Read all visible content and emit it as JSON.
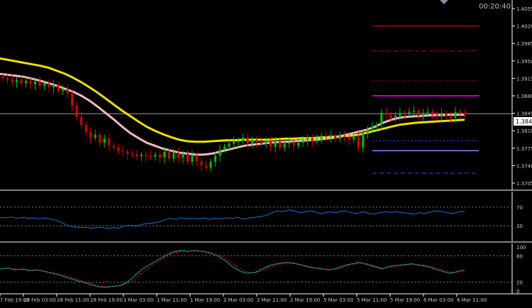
{
  "timer": "00:20:40",
  "colors": {
    "background": "#000000",
    "axis_text": "#c8c8c8",
    "candle_up": "#00c000",
    "candle_down": "#e00000",
    "ma_fast": "#f4b6c2",
    "ma_slow": "#f0e000",
    "rsi_line": "#1f6fd6",
    "stoch_main": "#20a0a0",
    "stoch_signal": "#e00000",
    "grid_level": "#808080"
  },
  "price_axis": {
    "labels": [
      "1.4055",
      "1.4020",
      "1.3985",
      "1.3950",
      "1.3915",
      "1.3880",
      "1.3845",
      "1.3810",
      "1.3775",
      "1.3740",
      "1.3705"
    ],
    "current_price": "1.3844",
    "range": [
      1.3705,
      1.4055
    ]
  },
  "rsi_axis": {
    "labels": [
      "70",
      "30"
    ]
  },
  "stoch_axis": {
    "labels": [
      "100",
      "80",
      "20",
      "0"
    ]
  },
  "time_axis": {
    "labels": [
      "7 Feb 19:00",
      "28 Feb 03:00",
      "28 Feb 11:00",
      "28 Feb 19:00",
      "1 Mar 03:00",
      "1 Mar 11:00",
      "1 Mar 19:00",
      "2 Mar 03:00",
      "2 Mar 11:00",
      "2 Mar 19:00",
      "5 Mar 03:00",
      "5 Mar 11:00",
      "5 Mar 19:00",
      "6 Mar 03:00",
      "6 Mar 11:00"
    ]
  },
  "chart_data": {
    "type": "candlestick",
    "ylim": [
      1.3705,
      1.4055
    ],
    "closes": [
      1.3915,
      1.3912,
      1.3908,
      1.3912,
      1.3905,
      1.391,
      1.3903,
      1.3909,
      1.39,
      1.3905,
      1.3897,
      1.3902,
      1.389,
      1.3893,
      1.3885,
      1.386,
      1.3838,
      1.3822,
      1.3808,
      1.3796,
      1.3802,
      1.3786,
      1.3794,
      1.378,
      1.3776,
      1.377,
      1.3768,
      1.3764,
      1.3762,
      1.3759,
      1.3762,
      1.376,
      1.3758,
      1.3762,
      1.3756,
      1.3768,
      1.3754,
      1.3766,
      1.3756,
      1.3764,
      1.3748,
      1.376,
      1.3749,
      1.374,
      1.3736,
      1.3748,
      1.376,
      1.3772,
      1.3778,
      1.3784,
      1.3788,
      1.379,
      1.3796,
      1.3785,
      1.3792,
      1.3787,
      1.3784,
      1.379,
      1.3778,
      1.3788,
      1.3776,
      1.3784,
      1.3786,
      1.378,
      1.3786,
      1.379,
      1.3796,
      1.3788,
      1.3792,
      1.38,
      1.3798,
      1.38,
      1.3794,
      1.38,
      1.3798,
      1.3792,
      1.3798,
      1.3776,
      1.3806,
      1.3812,
      1.3818,
      1.3822,
      1.3846,
      1.3842,
      1.3836,
      1.384,
      1.3846,
      1.3845,
      1.3848,
      1.385,
      1.384,
      1.3846,
      1.3848,
      1.3842,
      1.384,
      1.3845,
      1.384,
      1.3836,
      1.3848,
      1.3846,
      1.3842
    ],
    "ma_fast_values": [
      1.3924,
      1.3922,
      1.392,
      1.3918,
      1.3914,
      1.391,
      1.3905,
      1.39,
      1.3894,
      1.3888,
      1.388,
      1.387,
      1.3858,
      1.3845,
      1.3832,
      1.3818,
      1.3805,
      1.3795,
      1.3786,
      1.378,
      1.3774,
      1.377,
      1.3766,
      1.3764,
      1.3762,
      1.3762,
      1.3764,
      1.3768,
      1.3772,
      1.3776,
      1.378,
      1.3782,
      1.3784,
      1.3786,
      1.3787,
      1.3788,
      1.3789,
      1.379,
      1.3791,
      1.3792,
      1.3794,
      1.3796,
      1.38,
      1.3804,
      1.3808,
      1.3812,
      1.3818,
      1.3826,
      1.3832,
      1.3836,
      1.3838,
      1.3839,
      1.384,
      1.3841,
      1.3841,
      1.3842,
      1.3842,
      1.3842
    ],
    "ma_slow_values": [
      1.3955,
      1.3952,
      1.3949,
      1.3946,
      1.3943,
      1.394,
      1.3936,
      1.393,
      1.3924,
      1.3916,
      1.3907,
      1.3897,
      1.3886,
      1.3874,
      1.3862,
      1.385,
      1.3839,
      1.3828,
      1.3818,
      1.381,
      1.3803,
      1.3797,
      1.3792,
      1.3789,
      1.3788,
      1.3788,
      1.3789,
      1.379,
      1.3791,
      1.3791,
      1.3792,
      1.3792,
      1.3792,
      1.3792,
      1.3793,
      1.3794,
      1.3794,
      1.3795,
      1.3795,
      1.3796,
      1.3797,
      1.3798,
      1.3799,
      1.38,
      1.3802,
      1.3806,
      1.381,
      1.3814,
      1.3818,
      1.3822,
      1.3824,
      1.3826,
      1.3827,
      1.3828,
      1.3829,
      1.383,
      1.3831,
      1.3832
    ],
    "levels": [
      {
        "price": 1.402,
        "color": "#c00000",
        "style": "solid"
      },
      {
        "price": 1.397,
        "color": "#c00000",
        "style": "dashed"
      },
      {
        "price": 1.391,
        "color": "#c00000",
        "style": "dotted"
      },
      {
        "price": 1.388,
        "color": "#ff00ff",
        "style": "solid"
      },
      {
        "price": 1.3844,
        "color": "#a0a0a0",
        "style": "solid"
      },
      {
        "price": 1.379,
        "color": "#4040ff",
        "style": "dotted"
      },
      {
        "price": 1.377,
        "color": "#8080ff",
        "style": "solid"
      },
      {
        "price": 1.3725,
        "color": "#4040ff",
        "style": "dashed"
      }
    ],
    "rsi_values": [
      48,
      47,
      49,
      46,
      48,
      46,
      47,
      45,
      47,
      44,
      42,
      36,
      30,
      28,
      26,
      27,
      25,
      26,
      27,
      24,
      26,
      25,
      30,
      31,
      29,
      33,
      35,
      36,
      38,
      42,
      46,
      44,
      47,
      45,
      46,
      45,
      47,
      44,
      46,
      45,
      47,
      46,
      48,
      44,
      47,
      48,
      50,
      52,
      58,
      62,
      60,
      64,
      62,
      58,
      60,
      62,
      58,
      56,
      60,
      58,
      60,
      62,
      58,
      56,
      60,
      57,
      55,
      58,
      60,
      59,
      60,
      58,
      57,
      55,
      58,
      56,
      60,
      62,
      60,
      58,
      56,
      60,
      61
    ],
    "stoch_main": [
      50,
      52,
      48,
      50,
      46,
      48,
      44,
      40,
      36,
      30,
      25,
      20,
      15,
      10,
      8,
      10,
      12,
      20,
      35,
      50,
      60,
      70,
      80,
      88,
      92,
      90,
      92,
      90,
      86,
      80,
      70,
      55,
      45,
      40,
      42,
      50,
      58,
      62,
      65,
      63,
      60,
      55,
      52,
      50,
      48,
      52,
      58,
      62,
      65,
      60,
      55,
      50,
      56,
      58,
      60,
      62,
      58,
      56,
      50,
      45,
      40,
      44,
      48
    ],
    "stoch_signal": [
      50,
      51,
      50,
      49,
      48,
      47,
      45,
      42,
      38,
      33,
      28,
      22,
      17,
      12,
      10,
      10,
      12,
      17,
      28,
      42,
      55,
      66,
      76,
      85,
      90,
      91,
      91,
      90,
      88,
      83,
      75,
      62,
      50,
      43,
      41,
      46,
      54,
      60,
      63,
      64,
      61,
      57,
      53,
      51,
      49,
      50,
      55,
      60,
      63,
      62,
      57,
      52,
      53,
      56,
      58,
      60,
      60,
      57,
      53,
      48,
      43,
      42,
      45
    ]
  }
}
